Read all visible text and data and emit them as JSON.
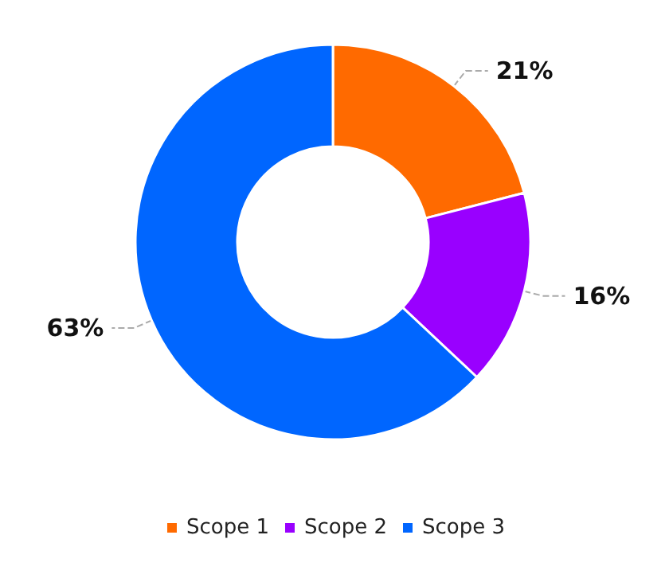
{
  "chart_data": {
    "type": "donut",
    "categories": [
      "Scope 1",
      "Scope 2",
      "Scope 3"
    ],
    "values": [
      21,
      16,
      63
    ],
    "colors": [
      "#ff6a00",
      "#9900ff",
      "#0066ff"
    ],
    "value_labels": [
      "21%",
      "16%",
      "63%"
    ],
    "legend": "bottom"
  }
}
